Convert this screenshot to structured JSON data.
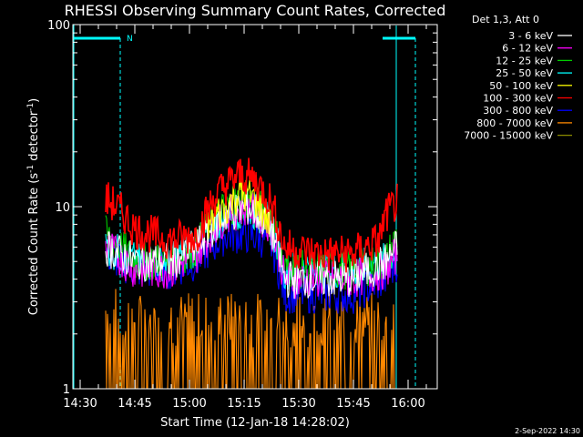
{
  "chart_data": {
    "type": "line",
    "title": "RHESSI Observing Summary Count Rates, Corrected",
    "xlabel": "Start Time (12-Jan-18 14:28:02)",
    "ylabel": "Corrected Count Rate (s-1 detector-1)",
    "ylabel_main": "Corrected Count Rate (s",
    "ylabel_sup1": "-1",
    "ylabel_mid": " detector",
    "ylabel_sup2": "-1",
    "ylabel_end": ")",
    "y_scale": "log",
    "ylim": [
      1,
      100
    ],
    "xlim": [
      "14:28",
      "16:08"
    ],
    "x_ticks": [
      "14:30",
      "14:45",
      "15:00",
      "15:15",
      "15:30",
      "15:45",
      "16:00"
    ],
    "y_ticks": [
      "1",
      "10",
      "100"
    ],
    "grid": false,
    "legend_placement": "outside-right",
    "legend_header": "Det 1,3, Att 0",
    "footer_date": "2-Sep-2022 14:30",
    "night_label": "N",
    "night_bars": [
      {
        "start": "14:28",
        "end": "14:41"
      },
      {
        "start": "15:53",
        "end": "16:02"
      }
    ],
    "data_window": {
      "start": "14:37",
      "end": "15:57"
    },
    "series": [
      {
        "name": "3 - 6 keV",
        "color": "#ffffff",
        "x": [
          "14:37",
          "14:45",
          "14:55",
          "15:02",
          "15:10",
          "15:16",
          "15:22",
          "15:26",
          "15:35",
          "15:45",
          "15:54",
          "15:57"
        ],
        "y": [
          6,
          5,
          5,
          6,
          9,
          10,
          8,
          4,
          4,
          4,
          5,
          6
        ]
      },
      {
        "name": "6 - 12 keV",
        "color": "#ff00ff",
        "x": [
          "14:37",
          "14:45",
          "14:55",
          "15:02",
          "15:10",
          "15:16",
          "15:22",
          "15:26",
          "15:35",
          "15:45",
          "15:54",
          "15:57"
        ],
        "y": [
          6,
          4.5,
          4.5,
          5.5,
          9,
          10,
          8,
          4,
          4,
          4,
          4.5,
          5.5
        ]
      },
      {
        "name": "12 - 25 keV",
        "color": "#00cc00",
        "x": [
          "14:37",
          "14:45",
          "14:55",
          "15:02",
          "15:10",
          "15:16",
          "15:22",
          "15:26",
          "15:35",
          "15:45",
          "15:54",
          "15:57"
        ],
        "y": [
          7,
          5,
          5,
          6,
          10,
          11,
          9,
          4.5,
          4.5,
          4.5,
          5,
          7
        ]
      },
      {
        "name": "25 - 50 keV",
        "color": "#00ffff",
        "x": [
          "14:37",
          "14:45",
          "14:55",
          "15:02",
          "15:10",
          "15:16",
          "15:22",
          "15:26",
          "15:35",
          "15:45",
          "15:54",
          "15:57"
        ],
        "y": [
          6,
          5,
          5,
          6,
          9,
          10,
          8,
          4.5,
          4.5,
          4.5,
          5,
          6
        ]
      },
      {
        "name": "50 - 100 keV",
        "color": "#ffff00",
        "x": [
          "15:05",
          "15:10",
          "15:14",
          "15:18",
          "15:22"
        ],
        "y": [
          8,
          10,
          12,
          11,
          8
        ]
      },
      {
        "name": "100 - 300 keV",
        "color": "#ff0000",
        "x": [
          "14:37",
          "14:40",
          "14:45",
          "14:55",
          "15:02",
          "15:08",
          "15:14",
          "15:18",
          "15:22",
          "15:26",
          "15:35",
          "15:45",
          "15:52",
          "15:54",
          "15:57"
        ],
        "y": [
          11,
          10,
          7.5,
          6.5,
          7,
          12,
          15,
          14,
          11,
          6,
          5.5,
          5.5,
          6.5,
          9,
          10.5
        ]
      },
      {
        "name": "300 - 800 keV",
        "color": "#0000ff",
        "x": [
          "14:37",
          "14:45",
          "14:55",
          "15:02",
          "15:10",
          "15:16",
          "15:22",
          "15:26",
          "15:35",
          "15:45",
          "15:54",
          "15:57"
        ],
        "y": [
          5.5,
          4.5,
          4.5,
          5,
          7,
          7,
          6.5,
          3.3,
          3.3,
          3.3,
          4,
          5
        ]
      },
      {
        "name": "800 - 7000 keV",
        "color": "#ff8800",
        "x": [
          "14:37",
          "14:45",
          "14:55",
          "15:05",
          "15:15",
          "15:25",
          "15:35",
          "15:45",
          "15:54",
          "15:57"
        ],
        "y": [
          2.7,
          2.4,
          2.4,
          2.4,
          2.4,
          2.4,
          2.4,
          2.4,
          2.4,
          2.7
        ]
      },
      {
        "name": "7000 - 15000 keV",
        "color": "#888800",
        "x": [],
        "y": []
      }
    ]
  }
}
